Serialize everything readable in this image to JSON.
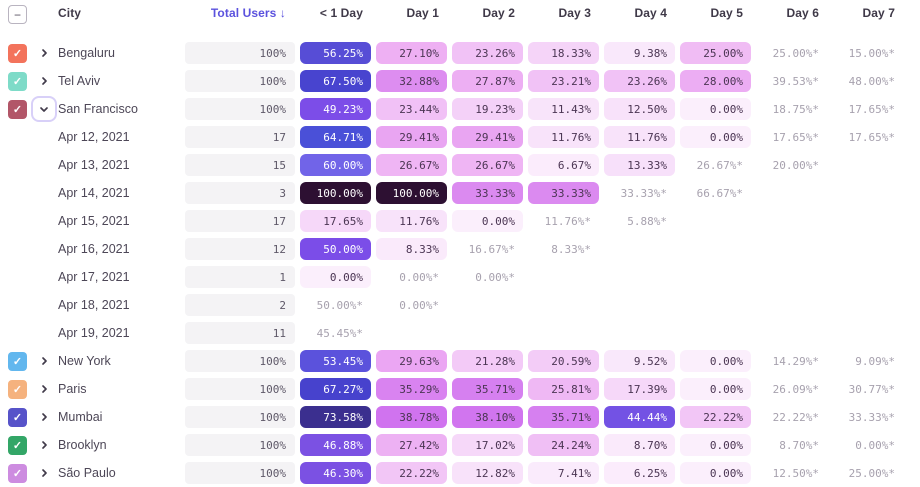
{
  "table": {
    "select_all_glyph": "−",
    "columns": {
      "city": "City",
      "total_users": "Total Users",
      "sort_arrow": "↓",
      "days": [
        "< 1 Day",
        "Day 1",
        "Day 2",
        "Day 3",
        "Day 4",
        "Day 5",
        "Day 6",
        "Day 7"
      ]
    },
    "rows": [
      {
        "kind": "city",
        "label": "Bengaluru",
        "checkbox_color": "#f3735c",
        "expanded": false,
        "total": "100%",
        "cells": [
          {
            "text": "56.25%",
            "bg": "#574dd6",
            "fg": "#ffffff"
          },
          {
            "text": "27.10%",
            "bg": "#eeb0f3"
          },
          {
            "text": "23.26%",
            "bg": "#f1c2f6"
          },
          {
            "text": "18.33%",
            "bg": "#f5d4f8"
          },
          {
            "text": "9.38%",
            "bg": "#f9e8fb"
          },
          {
            "text": "25.00%",
            "bg": "#f0bcf4"
          },
          {
            "text": "25.00%*",
            "estimated": true
          },
          {
            "text": "15.00%*",
            "estimated": true
          }
        ]
      },
      {
        "kind": "city",
        "label": "Tel Aviv",
        "checkbox_color": "#7edbc8",
        "expanded": false,
        "total": "100%",
        "cells": [
          {
            "text": "67.50%",
            "bg": "#4844cf",
            "fg": "#ffffff"
          },
          {
            "text": "32.88%",
            "bg": "#dd8df0"
          },
          {
            "text": "27.87%",
            "bg": "#edaff3"
          },
          {
            "text": "23.21%",
            "bg": "#f1c2f6"
          },
          {
            "text": "23.26%",
            "bg": "#f1c2f6"
          },
          {
            "text": "28.00%",
            "bg": "#ecadf3"
          },
          {
            "text": "39.53%*",
            "estimated": true
          },
          {
            "text": "48.00%*",
            "estimated": true
          }
        ]
      },
      {
        "kind": "city",
        "label": "San Francisco",
        "checkbox_color": "#b25668",
        "expanded": true,
        "total": "100%",
        "cells": [
          {
            "text": "49.23%",
            "bg": "#7c4de8",
            "fg": "#ffffff"
          },
          {
            "text": "23.44%",
            "bg": "#f1c1f6"
          },
          {
            "text": "19.23%",
            "bg": "#f4d1f8"
          },
          {
            "text": "11.43%",
            "bg": "#f8e4fa"
          },
          {
            "text": "12.50%",
            "bg": "#f8e2fa"
          },
          {
            "text": "0.00%",
            "bg": "#fbeffc"
          },
          {
            "text": "18.75%*",
            "estimated": true
          },
          {
            "text": "17.65%*",
            "estimated": true
          }
        ]
      },
      {
        "kind": "date",
        "label": "Apr 12, 2021",
        "total": "17",
        "cells": [
          {
            "text": "64.71%",
            "bg": "#4a50d8",
            "fg": "#ffffff"
          },
          {
            "text": "29.41%",
            "bg": "#e9a5f2"
          },
          {
            "text": "29.41%",
            "bg": "#e9a5f2"
          },
          {
            "text": "11.76%",
            "bg": "#f8e3fa"
          },
          {
            "text": "11.76%",
            "bg": "#f8e3fa"
          },
          {
            "text": "0.00%",
            "bg": "#fbeffc"
          },
          {
            "text": "17.65%*",
            "estimated": true
          },
          {
            "text": "17.65%*",
            "estimated": true
          }
        ]
      },
      {
        "kind": "date",
        "label": "Apr 13, 2021",
        "total": "15",
        "cells": [
          {
            "text": "60.00%",
            "bg": "#7164e8",
            "fg": "#ffffff"
          },
          {
            "text": "26.67%",
            "bg": "#efb5f4"
          },
          {
            "text": "26.67%",
            "bg": "#efb5f4"
          },
          {
            "text": "6.67%",
            "bg": "#fbecfc"
          },
          {
            "text": "13.33%",
            "bg": "#f7e0fa"
          },
          {
            "text": "26.67%*",
            "estimated": true
          },
          {
            "text": "20.00%*",
            "estimated": true
          },
          null
        ]
      },
      {
        "kind": "date",
        "label": "Apr 14, 2021",
        "total": "3",
        "cells": [
          {
            "text": "100.00%",
            "bg": "#2d1032",
            "fg": "#ffffff"
          },
          {
            "text": "100.00%",
            "bg": "#2d1032",
            "fg": "#ffffff"
          },
          {
            "text": "33.33%",
            "bg": "#db8af0"
          },
          {
            "text": "33.33%",
            "bg": "#db8af0"
          },
          {
            "text": "33.33%*",
            "estimated": true
          },
          {
            "text": "66.67%*",
            "estimated": true
          },
          null,
          null
        ]
      },
      {
        "kind": "date",
        "label": "Apr 15, 2021",
        "total": "17",
        "cells": [
          {
            "text": "17.65%",
            "bg": "#f6d8f9"
          },
          {
            "text": "11.76%",
            "bg": "#f8e3fa"
          },
          {
            "text": "0.00%",
            "bg": "#fbeffc"
          },
          {
            "text": "11.76%*",
            "estimated": true
          },
          {
            "text": "5.88%*",
            "estimated": true
          },
          null,
          null,
          null
        ]
      },
      {
        "kind": "date",
        "label": "Apr 16, 2021",
        "total": "12",
        "cells": [
          {
            "text": "50.00%",
            "bg": "#7b4de8",
            "fg": "#ffffff"
          },
          {
            "text": "8.33%",
            "bg": "#faeafb"
          },
          {
            "text": "16.67%*",
            "estimated": true
          },
          {
            "text": "8.33%*",
            "estimated": true
          },
          null,
          null,
          null,
          null
        ]
      },
      {
        "kind": "date",
        "label": "Apr 17, 2021",
        "total": "1",
        "cells": [
          {
            "text": "0.00%",
            "bg": "#fbeffc"
          },
          {
            "text": "0.00%*",
            "estimated": true
          },
          {
            "text": "0.00%*",
            "estimated": true
          },
          null,
          null,
          null,
          null,
          null
        ]
      },
      {
        "kind": "date",
        "label": "Apr 18, 2021",
        "total": "2",
        "cells": [
          {
            "text": "50.00%*",
            "estimated": true
          },
          {
            "text": "0.00%*",
            "estimated": true
          },
          null,
          null,
          null,
          null,
          null,
          null
        ]
      },
      {
        "kind": "date",
        "label": "Apr 19, 2021",
        "total": "11",
        "cells": [
          {
            "text": "45.45%*",
            "estimated": true
          },
          null,
          null,
          null,
          null,
          null,
          null,
          null
        ]
      },
      {
        "kind": "city",
        "label": "New York",
        "checkbox_color": "#62b7ee",
        "expanded": false,
        "total": "100%",
        "cells": [
          {
            "text": "53.45%",
            "bg": "#5b52dc",
            "fg": "#ffffff"
          },
          {
            "text": "29.63%",
            "bg": "#eba6f3"
          },
          {
            "text": "21.28%",
            "bg": "#f3caf7"
          },
          {
            "text": "20.59%",
            "bg": "#f3ccf7"
          },
          {
            "text": "9.52%",
            "bg": "#f9e8fb"
          },
          {
            "text": "0.00%",
            "bg": "#fbeffc"
          },
          {
            "text": "14.29%*",
            "estimated": true
          },
          {
            "text": "9.09%*",
            "estimated": true
          }
        ]
      },
      {
        "kind": "city",
        "label": "Paris",
        "checkbox_color": "#f5b27e",
        "expanded": false,
        "total": "100%",
        "cells": [
          {
            "text": "67.27%",
            "bg": "#4742cd",
            "fg": "#ffffff"
          },
          {
            "text": "35.29%",
            "bg": "#d983f0"
          },
          {
            "text": "35.71%",
            "bg": "#d680f0"
          },
          {
            "text": "25.81%",
            "bg": "#efb8f4"
          },
          {
            "text": "17.39%",
            "bg": "#f6d8f9"
          },
          {
            "text": "0.00%",
            "bg": "#fbeffc"
          },
          {
            "text": "26.09%*",
            "estimated": true
          },
          {
            "text": "30.77%*",
            "estimated": true
          }
        ]
      },
      {
        "kind": "city",
        "label": "Mumbai",
        "checkbox_color": "#5753c9",
        "expanded": false,
        "total": "100%",
        "cells": [
          {
            "text": "73.58%",
            "bg": "#3b2f8f",
            "fg": "#ffffff"
          },
          {
            "text": "38.78%",
            "bg": "#d073ef"
          },
          {
            "text": "38.10%",
            "bg": "#d175ef"
          },
          {
            "text": "35.71%",
            "bg": "#d680f0"
          },
          {
            "text": "44.44%",
            "bg": "#7352e4",
            "fg": "#ffffff"
          },
          {
            "text": "22.22%",
            "bg": "#f2c6f6"
          },
          {
            "text": "22.22%*",
            "estimated": true
          },
          {
            "text": "33.33%*",
            "estimated": true
          }
        ]
      },
      {
        "kind": "city",
        "label": "Brooklyn",
        "checkbox_color": "#33a667",
        "expanded": false,
        "total": "100%",
        "cells": [
          {
            "text": "46.88%",
            "bg": "#7b51e3",
            "fg": "#ffffff"
          },
          {
            "text": "27.42%",
            "bg": "#edb1f3"
          },
          {
            "text": "17.02%",
            "bg": "#f6d8f9"
          },
          {
            "text": "24.24%",
            "bg": "#f0bff5"
          },
          {
            "text": "8.70%",
            "bg": "#faeafb"
          },
          {
            "text": "0.00%",
            "bg": "#fbeffc"
          },
          {
            "text": "8.70%*",
            "estimated": true
          },
          {
            "text": "0.00%*",
            "estimated": true
          }
        ]
      },
      {
        "kind": "city",
        "label": "São Paulo",
        "checkbox_color": "#cd8ce0",
        "expanded": false,
        "total": "100%",
        "cells": [
          {
            "text": "46.30%",
            "bg": "#7b51e3",
            "fg": "#ffffff"
          },
          {
            "text": "22.22%",
            "bg": "#f2c6f6"
          },
          {
            "text": "12.82%",
            "bg": "#f8e2fa"
          },
          {
            "text": "7.41%",
            "bg": "#faebfc"
          },
          {
            "text": "6.25%",
            "bg": "#fbecfc"
          },
          {
            "text": "0.00%",
            "bg": "#fbeffc"
          },
          {
            "text": "12.50%*",
            "estimated": true
          },
          {
            "text": "25.00%*",
            "estimated": true
          }
        ]
      }
    ]
  },
  "colors": {
    "header_accent": "#5b52de",
    "header_text": "#3f3948",
    "label_text": "#4d4757",
    "bar_bg": "#f4f3f5",
    "bar_text": "#5e5868",
    "cell_dark_text": "#4b3553",
    "cell_light_text": "#ffffff",
    "estimated_text": "#a7a1ae",
    "checkbox_border": "#b9b4c0",
    "check_mark": "#ffffff",
    "chevron": "#413b4a",
    "focus_ring": "#d8d0f8",
    "darkest_cell": "#2d1032"
  }
}
